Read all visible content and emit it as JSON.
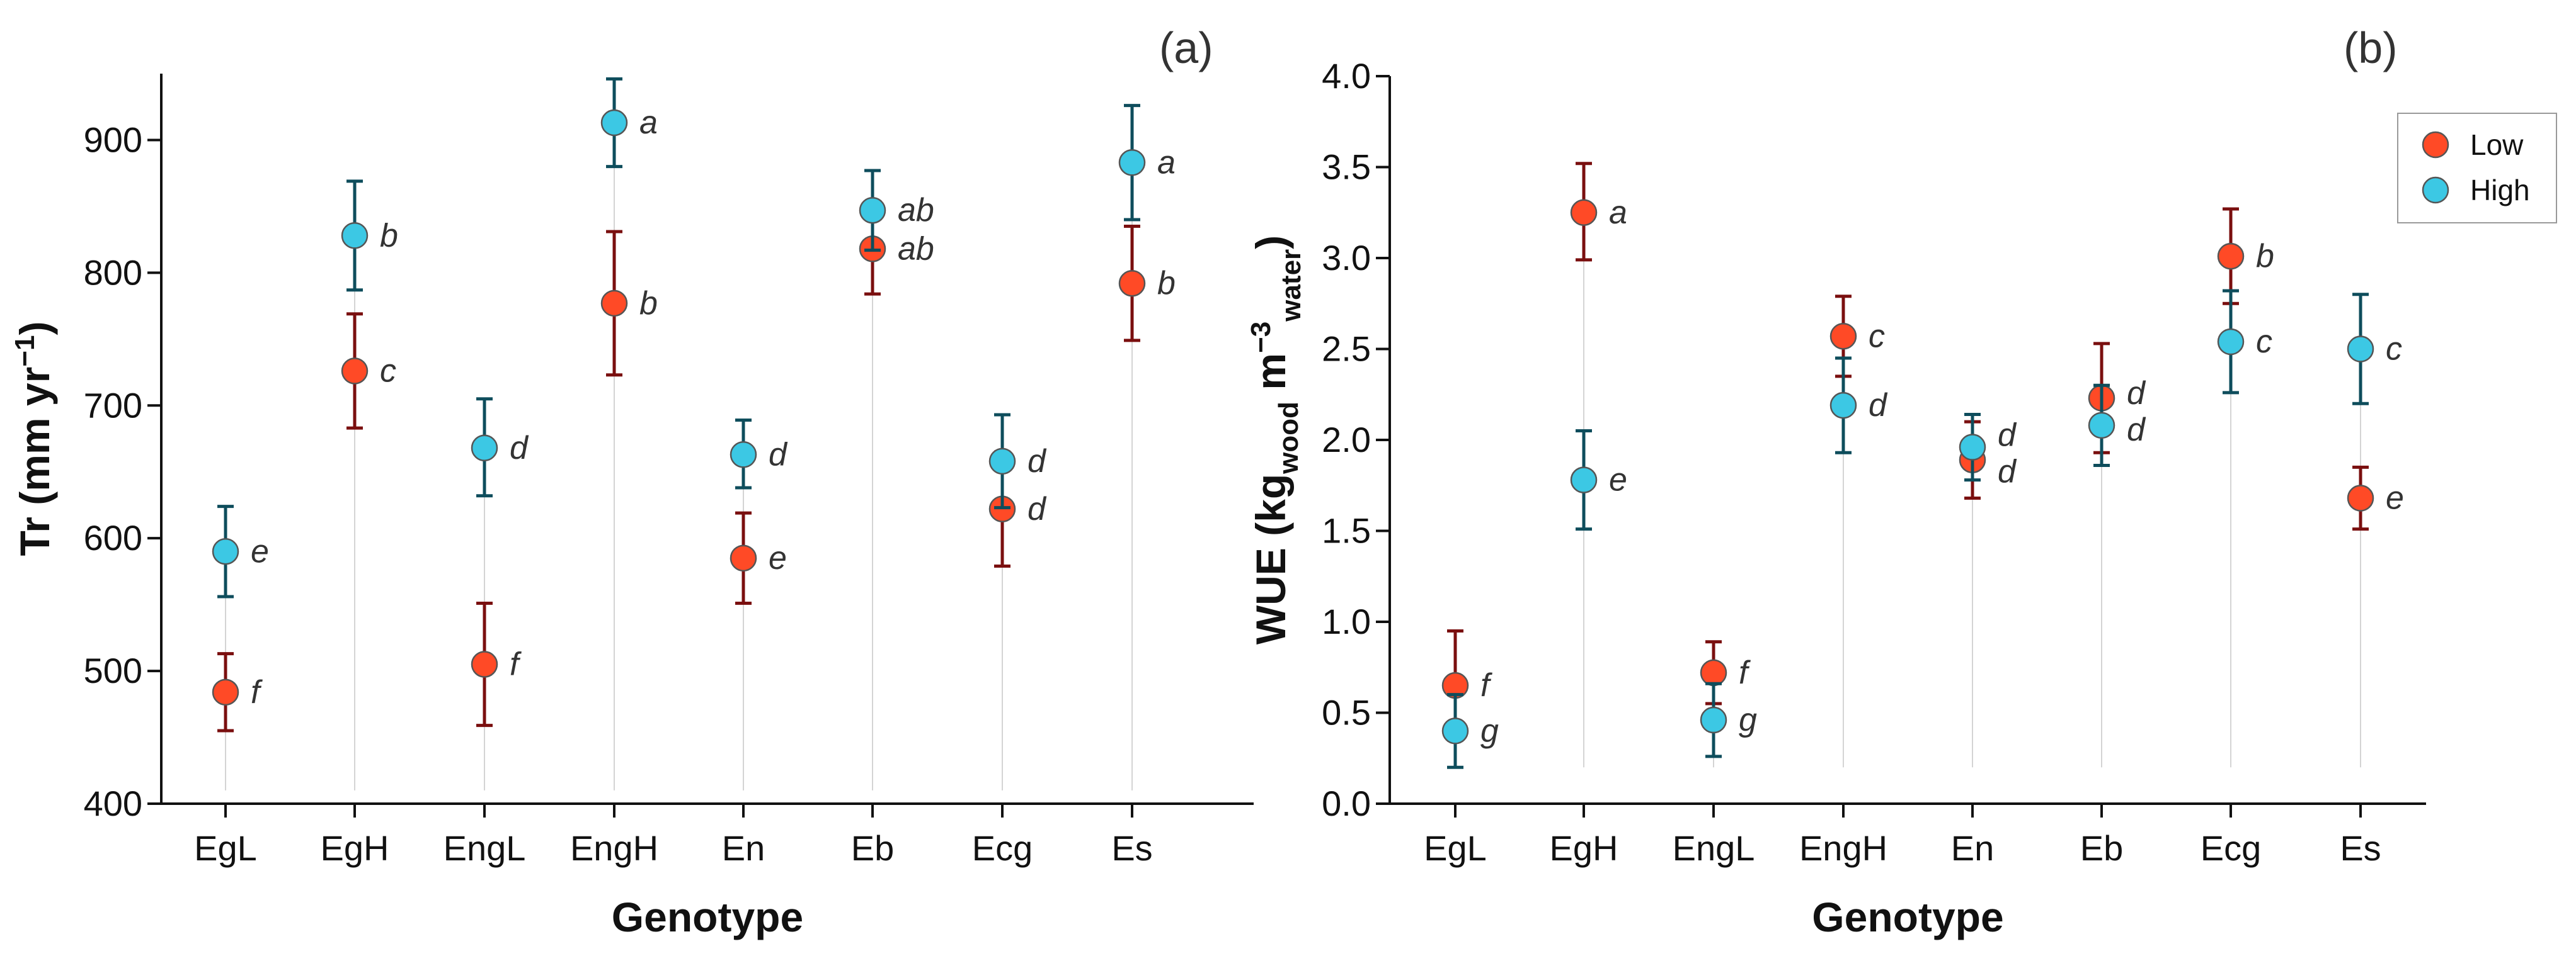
{
  "colors": {
    "low": "#FF4A26",
    "high": "#3CC8E4",
    "low_err": "#7A0F0F",
    "high_err": "#0E4D5C",
    "marker_edge": "#555555"
  },
  "chart_data": [
    {
      "type": "scatter",
      "panel_label": "(a)",
      "xlabel": "Genotype",
      "ylabel": "Tr (mm yr",
      "ylabel_sup": "−1",
      "ylabel_close": ")",
      "ylim": [
        400,
        950
      ],
      "yticks": [
        400,
        500,
        600,
        700,
        800,
        900
      ],
      "ytick_labels": [
        "400",
        "500",
        "600",
        "700",
        "800",
        "900"
      ],
      "categories": [
        "EgL",
        "EgH",
        "EngL",
        "EngH",
        "En",
        "Eb",
        "Ecg",
        "Es"
      ],
      "series": [
        {
          "name": "Low",
          "values": [
            484,
            726,
            505,
            777,
            585,
            818,
            622,
            792
          ],
          "err_low": [
            455,
            683,
            459,
            723,
            551,
            784,
            579,
            749
          ],
          "err_high": [
            513,
            769,
            551,
            831,
            619,
            852,
            665,
            835
          ],
          "letters": [
            "f",
            "c",
            "f",
            "b",
            "e",
            "ab",
            "d",
            "b"
          ]
        },
        {
          "name": "High",
          "values": [
            590,
            828,
            668,
            913,
            663,
            847,
            658,
            883
          ],
          "err_low": [
            556,
            787,
            632,
            880,
            638,
            817,
            623,
            840
          ],
          "err_high": [
            624,
            869,
            705,
            946,
            689,
            877,
            693,
            926
          ],
          "letters": [
            "e",
            "b",
            "d",
            "a",
            "d",
            "ab",
            "d",
            "a"
          ]
        }
      ],
      "legend": null
    },
    {
      "type": "scatter",
      "panel_label": "(b)",
      "xlabel": "Genotype",
      "ylabel": "WUE (kg",
      "ylabel_sub1": "wood",
      "ylabel_mid": " m",
      "ylabel_sup": "−3",
      "ylabel_sub2": "water",
      "ylabel_close": ")",
      "ylim": [
        0,
        4.0
      ],
      "yticks": [
        0,
        0.5,
        1,
        1.5,
        2,
        2.5,
        3,
        3.5,
        4
      ],
      "ytick_labels": [
        "0.0",
        "0.5",
        "1.0",
        "1.5",
        "2.0",
        "2.5",
        "3.0",
        "3.5",
        "4.0"
      ],
      "categories": [
        "EgL",
        "EgH",
        "EngL",
        "EngH",
        "En",
        "Eb",
        "Ecg",
        "Es"
      ],
      "series": [
        {
          "name": "Low",
          "values": [
            0.65,
            3.25,
            0.72,
            2.57,
            1.89,
            2.23,
            3.01,
            1.68
          ],
          "err_low": [
            0.35,
            2.99,
            0.55,
            2.35,
            1.68,
            1.93,
            2.75,
            1.51
          ],
          "err_high": [
            0.95,
            3.52,
            0.89,
            2.79,
            2.1,
            2.53,
            3.27,
            1.85
          ],
          "letters": [
            "f",
            "a",
            "f",
            "c",
            "d",
            "d",
            "b",
            "e"
          ]
        },
        {
          "name": "High",
          "values": [
            0.4,
            1.78,
            0.46,
            2.19,
            1.96,
            2.08,
            2.54,
            2.5
          ],
          "err_low": [
            0.2,
            1.51,
            0.26,
            1.93,
            1.78,
            1.86,
            2.26,
            2.2
          ],
          "err_high": [
            0.6,
            2.05,
            0.66,
            2.45,
            2.14,
            2.3,
            2.82,
            2.8
          ],
          "letters": [
            "g",
            "e",
            "g",
            "d",
            "d",
            "d",
            "c",
            "c"
          ]
        }
      ],
      "legend": {
        "placement": "top-right",
        "entries": [
          "Low",
          "High"
        ]
      }
    }
  ]
}
